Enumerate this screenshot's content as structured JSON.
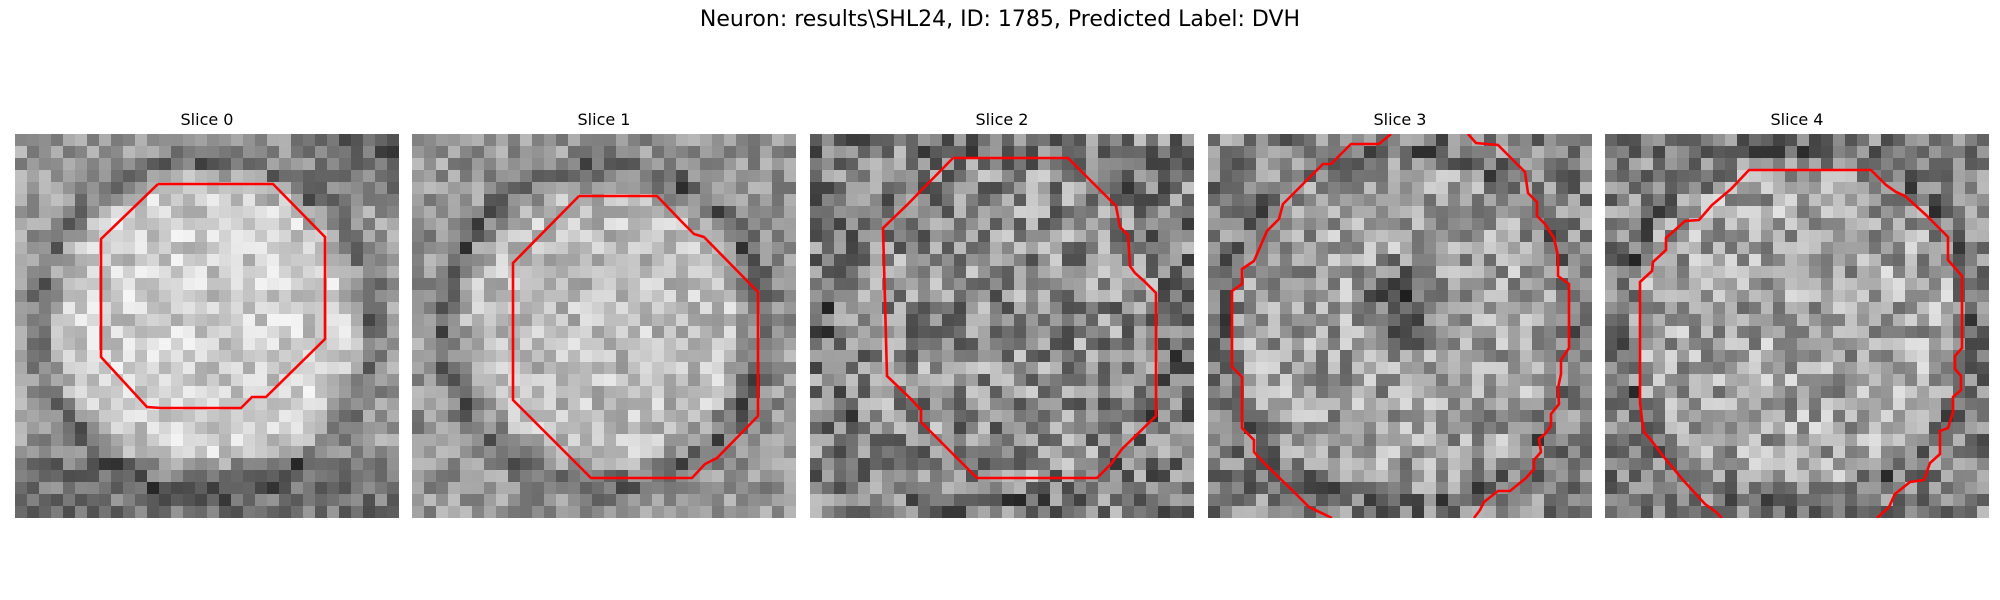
{
  "figure": {
    "title": "Neuron: results\\SHL24, ID: 1785, Predicted Label: DVH",
    "outline_color": "#ff0000",
    "colormap": "gray"
  },
  "slices": [
    {
      "label": "Slice 0",
      "image_description": "grayscale neuron patch, bright textured cell body ringed by darker boundary, dark corner top-right"
    },
    {
      "label": "Slice 1",
      "image_description": "grayscale neuron patch, bright round nucleus with dark ring"
    },
    {
      "label": "Slice 2",
      "image_description": "noisy grayscale neuron patch, faint round cell"
    },
    {
      "label": "Slice 3",
      "image_description": "grayscale neuron patch with dark center blob surrounded by lighter ring"
    },
    {
      "label": "Slice 4",
      "image_description": "noisy grayscale neuron patch, mottled bright cell body"
    }
  ]
}
